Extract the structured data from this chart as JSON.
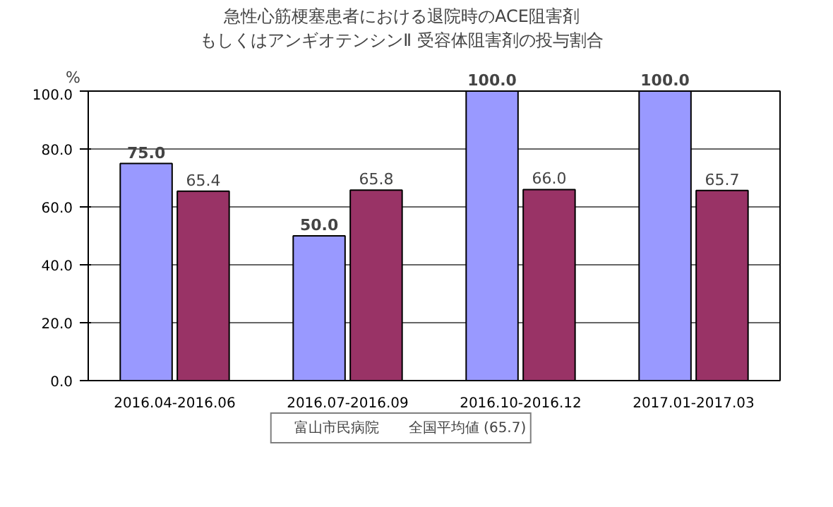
{
  "chart_data": {
    "type": "bar",
    "title": "急性心筋梗塞患者における退院時のACE阻害剤",
    "subtitle": "もしくはアンギオテンシンⅡ 受容体阻害剤の投与割合",
    "ylabel": "%",
    "categories": [
      "2016.04-2016.06",
      "2016.07-2016.09",
      "2016.10-2016.12",
      "2017.01-2017.03"
    ],
    "series": [
      {
        "name": "富山市民病院",
        "color": "#9999ff",
        "values": [
          75.0,
          50.0,
          100.0,
          100.0
        ],
        "value_labels": [
          "75.0",
          "50.0",
          "100.0",
          "100.0"
        ]
      },
      {
        "name": "全国平均値 (65.7)",
        "color": "#993366",
        "values": [
          65.4,
          65.8,
          66.0,
          65.7
        ],
        "value_labels": [
          "65.4",
          "65.8",
          "66.0",
          "65.7"
        ]
      }
    ],
    "ylim": [
      0,
      100
    ],
    "yticks": [
      {
        "value": 0,
        "label": "0.0"
      },
      {
        "value": 20,
        "label": "20.0"
      },
      {
        "value": 40,
        "label": "40.0"
      },
      {
        "value": 60,
        "label": "60.0"
      },
      {
        "value": 80,
        "label": "80.0"
      },
      {
        "value": 100,
        "label": "100.0"
      }
    ],
    "grid": "y",
    "legend": "bottom"
  }
}
